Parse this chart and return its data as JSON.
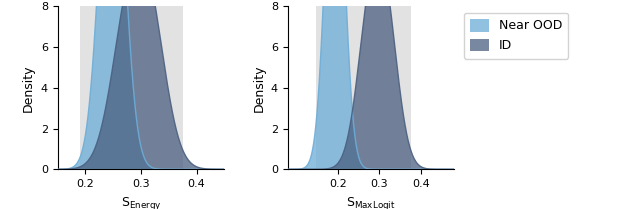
{
  "panel1": {
    "xlabel": "S_{Energy}",
    "ylabel": "Density",
    "xlim": [
      0.15,
      0.45
    ],
    "ylim": [
      0,
      8
    ],
    "xticks": [
      0.2,
      0.3,
      0.4
    ],
    "shaded_region": [
      0.19,
      0.375
    ],
    "ood_mean": 0.248,
    "ood_std": 0.022,
    "id_peaks": [
      0.275,
      0.315
    ],
    "id_weights": [
      0.48,
      0.52
    ],
    "id_std": 0.03
  },
  "panel2": {
    "xlabel": "S_{MaxLogit}",
    "ylabel": "Density",
    "xlim": [
      0.08,
      0.48
    ],
    "ylim": [
      0,
      8
    ],
    "xticks": [
      0.2,
      0.3,
      0.4
    ],
    "shaded_region": [
      0.148,
      0.375
    ],
    "ood_mean": 0.193,
    "ood_std": 0.022,
    "id_peaks": [
      0.275,
      0.315
    ],
    "id_weights": [
      0.48,
      0.52
    ],
    "id_std": 0.03
  },
  "legend_labels": [
    "Near OOD",
    "ID"
  ],
  "ood_color": "#6dadd8",
  "id_color": "#4b6080",
  "shaded_color": "#e2e2e2",
  "alpha_ood": 0.75,
  "alpha_id": 0.75
}
